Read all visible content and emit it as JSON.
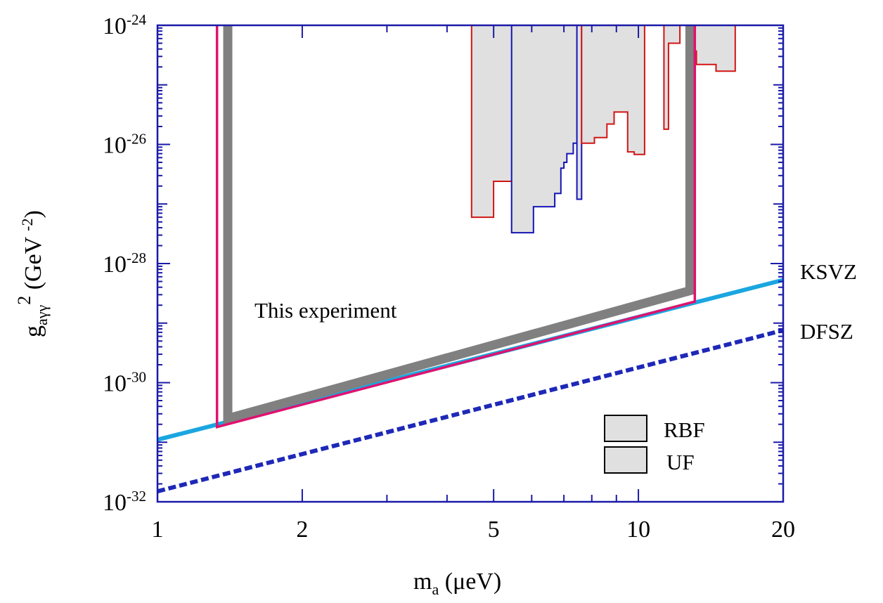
{
  "chart_data": {
    "type": "line",
    "x_scale": "log",
    "y_scale": "log",
    "xlabel": {
      "main": "m",
      "sub": "a",
      "rest": " (μeV)"
    },
    "ylabel": {
      "main": "g",
      "sub": "aγγ",
      "sup": "2",
      "rest": " (GeV ",
      "unit_sup": "-2",
      "close": ")"
    },
    "xlim": [
      1,
      20
    ],
    "ylim": [
      1e-32,
      1e-24
    ],
    "x_ticks": [
      {
        "value": 1,
        "label": "1"
      },
      {
        "value": 2,
        "label": "2"
      },
      {
        "value": 5,
        "label": "5"
      },
      {
        "value": 10,
        "label": "10"
      },
      {
        "value": 20,
        "label": "20"
      }
    ],
    "y_ticks": [
      {
        "value": 1e-32,
        "base": "10",
        "exp": "-32"
      },
      {
        "value": 1e-30,
        "base": "10",
        "exp": "-30"
      },
      {
        "value": 1e-28,
        "base": "10",
        "exp": "-28"
      },
      {
        "value": 1e-26,
        "base": "10",
        "exp": "-26"
      },
      {
        "value": 1e-24,
        "base": "10",
        "exp": "-24"
      }
    ],
    "grid": false,
    "colors": {
      "axis": "#1a1aa8",
      "ksvz": "#1aa6e0",
      "dfsz": "#1e28b8",
      "experiment_gray": "#808080",
      "experiment_pink": "#e0126e",
      "rbf": "#d21414",
      "uf": "#1414b4",
      "excluded_fill": "#e0e0e0"
    },
    "annotations": {
      "this_experiment": "This experiment",
      "ksvz": "KSVZ",
      "dfsz": "DFSZ"
    },
    "legend": {
      "placement": "bottom-right",
      "entries": [
        {
          "label": "RBF",
          "color": "#e0e0e0"
        },
        {
          "label": "UF",
          "color": "#e0e0e0"
        }
      ]
    },
    "series": [
      {
        "name": "KSVZ",
        "style": "solid",
        "points": [
          [
            1,
            1.1e-31
          ],
          [
            20,
            5.3e-29
          ]
        ]
      },
      {
        "name": "DFSZ",
        "style": "dashed",
        "points": [
          [
            1,
            1.5e-32
          ],
          [
            20,
            7.6e-30
          ]
        ]
      },
      {
        "name": "This experiment",
        "style": "thick-gray",
        "points": [
          [
            1.4,
            1e-24
          ],
          [
            1.4,
            2.5e-31
          ],
          [
            12.8,
            3.5e-29
          ],
          [
            12.8,
            1e-24
          ]
        ]
      },
      {
        "name": "This experiment",
        "style": "pink",
        "points": [
          [
            1.33,
            1e-24
          ],
          [
            1.33,
            1.8e-31
          ],
          [
            13.1,
            2.3e-29
          ],
          [
            13.1,
            1e-24
          ]
        ]
      }
    ],
    "exclusion_regions": [
      {
        "name": "RBF",
        "steps": [
          [
            4.5,
            6e-28
          ],
          [
            5.0,
            6e-28
          ],
          [
            5.0,
            2.4e-27
          ],
          [
            5.5,
            2.4e-27
          ],
          [
            5.5,
            3.6e-27
          ],
          [
            5.45,
            3.6e-27
          ]
        ]
      },
      {
        "name": "UF",
        "steps": [
          [
            5.45,
            3.3e-28
          ],
          [
            6.05,
            3.3e-28
          ],
          [
            6.05,
            9e-28
          ],
          [
            6.7,
            9e-28
          ],
          [
            6.7,
            1.5e-27
          ],
          [
            6.9,
            1.5e-27
          ],
          [
            6.9,
            4e-27
          ],
          [
            7.0,
            4e-27
          ],
          [
            7.0,
            5e-27
          ],
          [
            7.1,
            5e-27
          ],
          [
            7.1,
            7e-27
          ],
          [
            7.32,
            7e-27
          ],
          [
            7.32,
            1.05e-26
          ],
          [
            7.45,
            1.05e-26
          ]
        ]
      },
      {
        "name": "UF",
        "steps": [
          [
            7.45,
            1.2e-27
          ],
          [
            7.62,
            1.2e-27
          ],
          [
            7.62,
            1e-24
          ]
        ]
      },
      {
        "name": "RBF",
        "steps": [
          [
            7.62,
            1.05e-26
          ],
          [
            8.1,
            1.05e-26
          ],
          [
            8.1,
            1.3e-26
          ],
          [
            8.6,
            1.3e-26
          ],
          [
            8.6,
            2.2e-26
          ],
          [
            8.9,
            2.2e-26
          ],
          [
            8.9,
            3.5e-26
          ],
          [
            9.5,
            3.5e-26
          ],
          [
            9.5,
            7.5e-27
          ],
          [
            9.8,
            7.5e-27
          ],
          [
            9.8,
            6.8e-27
          ],
          [
            10.3,
            6.8e-27
          ],
          [
            10.3,
            1e-24
          ]
        ]
      },
      {
        "name": "RBF",
        "steps": [
          [
            11.3,
            1e-24
          ],
          [
            11.3,
            1.8e-26
          ],
          [
            11.55,
            1.8e-26
          ],
          [
            11.55,
            5e-25
          ],
          [
            12.2,
            5e-25
          ],
          [
            12.2,
            1e-24
          ]
        ]
      },
      {
        "name": "RBF",
        "steps": [
          [
            13.1,
            3.7e-25
          ],
          [
            13.2,
            3.7e-25
          ],
          [
            13.2,
            2.2e-25
          ],
          [
            14.5,
            2.2e-25
          ],
          [
            14.5,
            1.7e-25
          ],
          [
            15.5,
            1.7e-25
          ],
          [
            15.5,
            1.7e-25
          ],
          [
            15.9,
            1.7e-25
          ],
          [
            15.9,
            1e-24
          ]
        ]
      }
    ]
  }
}
